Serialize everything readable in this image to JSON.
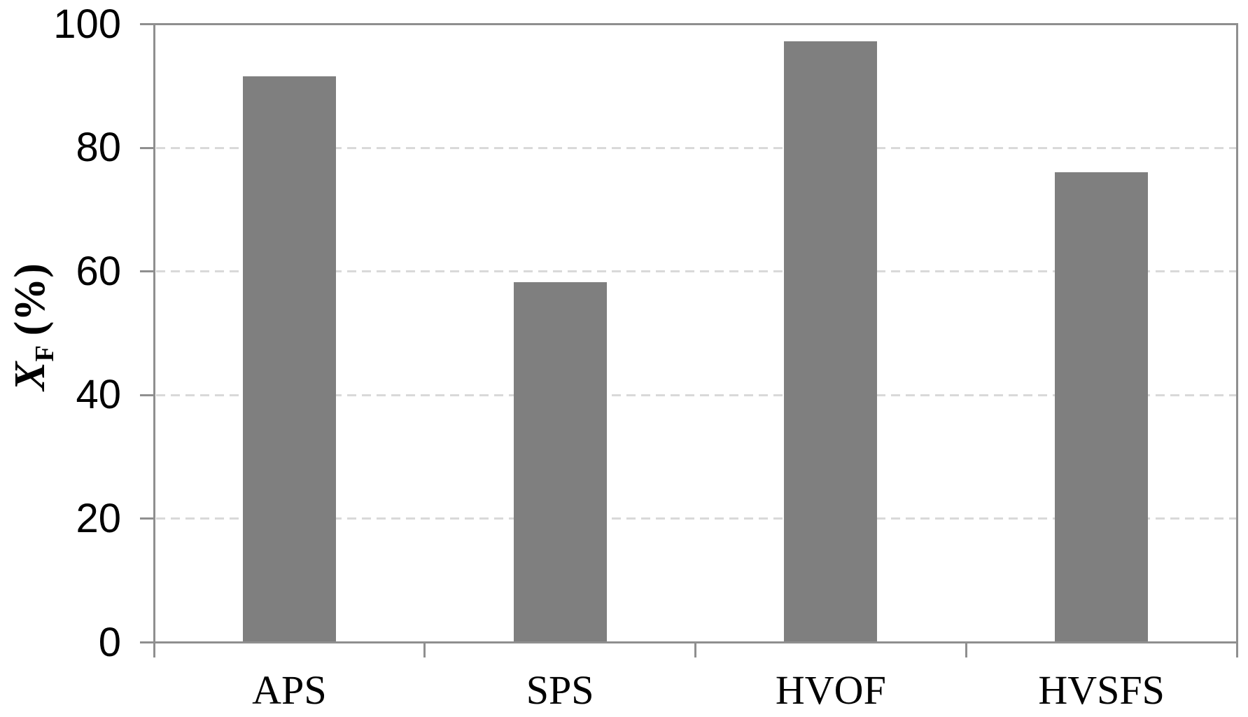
{
  "chart_data": {
    "type": "bar",
    "title": "",
    "xlabel": "",
    "ylabel": "X_F (%)",
    "ylabel_parts": {
      "base": "X",
      "sub": "F",
      "suffix": "(%)"
    },
    "categories": [
      "APS",
      "SPS",
      "HVOF",
      "HVSFS"
    ],
    "values": [
      91.6,
      58.3,
      97.2,
      76.1
    ],
    "ylim": [
      0,
      100
    ],
    "yticks": [
      0,
      20,
      40,
      60,
      80,
      100
    ],
    "grid": "horizontal dashed gridlines at 20, 40, 60, 80; solid border on top and right of plot area",
    "legend": "none",
    "bar_color": "#7f7f7f",
    "axis_color": "#8f8f8f",
    "gridline_color": "#d9d9d9",
    "text_color": "#000000"
  }
}
